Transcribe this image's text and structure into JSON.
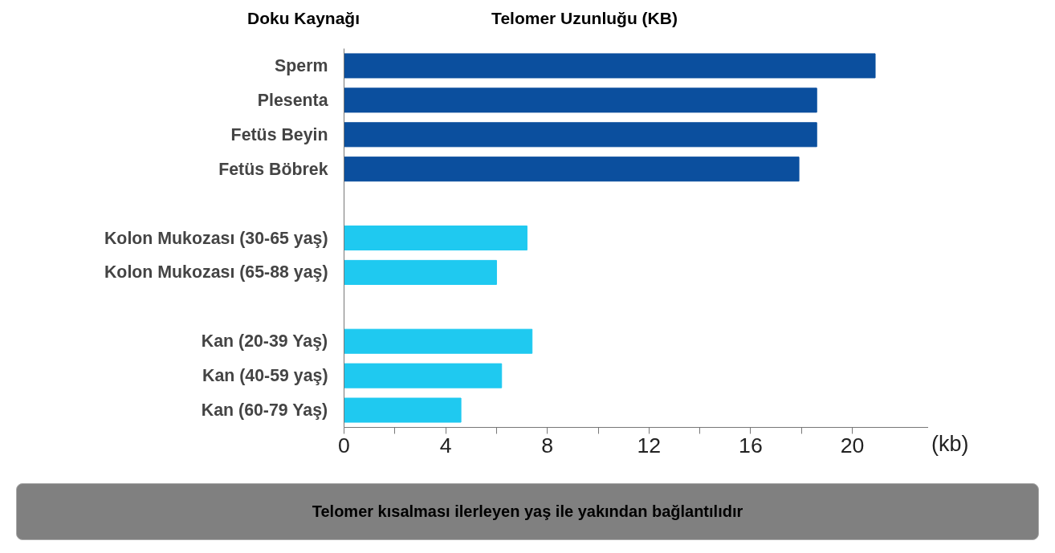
{
  "chart_data": {
    "type": "bar",
    "orientation": "horizontal",
    "title": "Telomer Uzunluğu (KB)",
    "ylabel": "Doku Kaynağı",
    "xlabel": "(kb)",
    "categories": [
      "Sperm",
      "Plesenta",
      "Fetüs Beyin",
      "Fetüs Böbrek",
      null,
      "Kolon Mukozası (30-65 yaş)",
      "Kolon Mukozası (65-88 yaş)",
      null,
      "Kan (20-39 Yaş)",
      "Kan (40-59 yaş)",
      "Kan (60-79 Yaş)"
    ],
    "values": [
      20.9,
      18.6,
      18.6,
      17.9,
      null,
      7.2,
      6.0,
      null,
      7.4,
      6.2,
      4.6
    ],
    "colors": [
      "#0b4f9e",
      "#0b4f9e",
      "#0b4f9e",
      "#0b4f9e",
      null,
      "#1fc9f0",
      "#1fc9f0",
      null,
      "#1fc9f0",
      "#1fc9f0",
      "#1fc9f0"
    ],
    "xlim": [
      0,
      23
    ],
    "xticks": [
      0,
      {
        "value": 2,
        "label": null
      },
      4,
      {
        "value": 6,
        "label": null
      },
      8,
      {
        "value": 10,
        "label": null
      },
      12,
      {
        "value": 14,
        "label": null
      },
      16,
      {
        "value": 18,
        "label": null
      },
      20
    ],
    "grid": false,
    "legend": false,
    "annotations": [
      "Telomer kısalması ilerleyen yaş ile yakından bağlantılıdır"
    ]
  }
}
